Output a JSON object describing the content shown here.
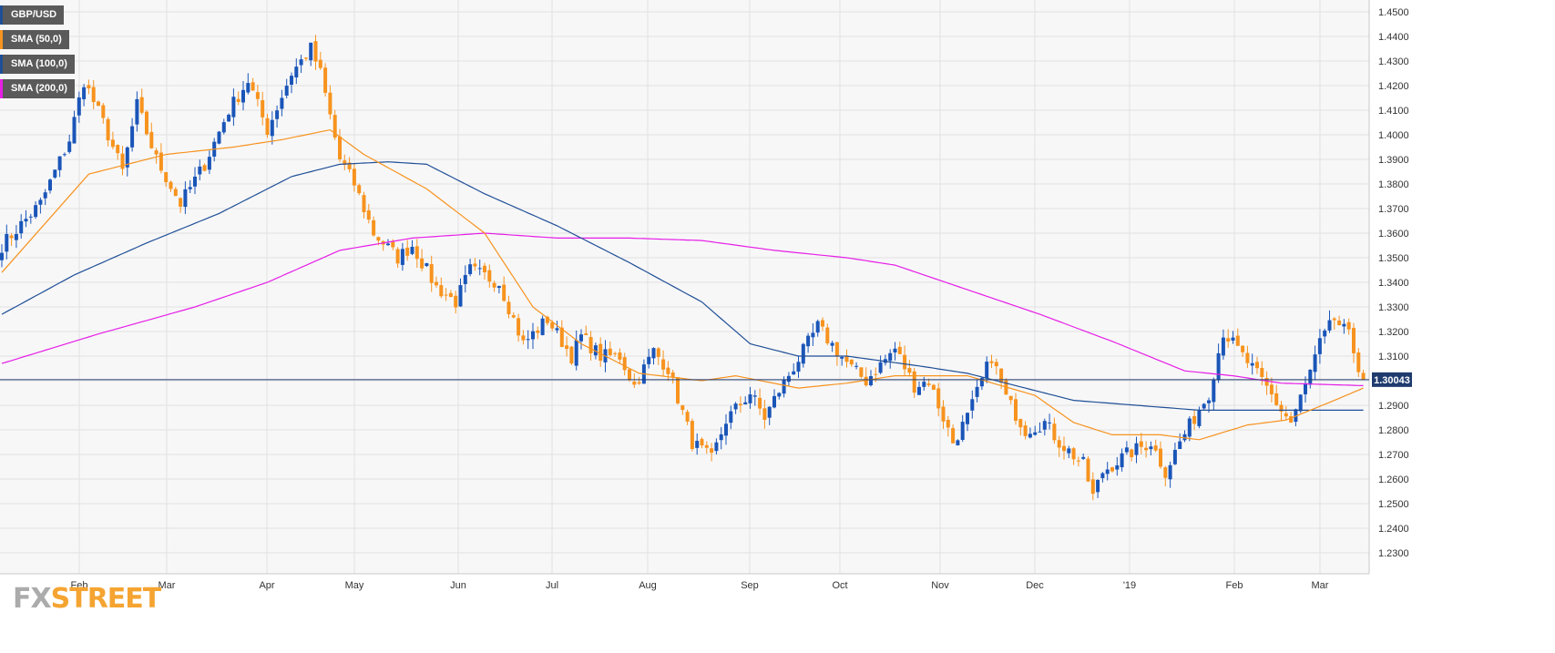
{
  "legend": [
    {
      "label": "GBP/USD",
      "color": "#1f4e96"
    },
    {
      "label": "SMA (50,0)",
      "color": "#f7931e"
    },
    {
      "label": "SMA (100,0)",
      "color": "#1f4e96"
    },
    {
      "label": "SMA (200,0)",
      "color": "#e61ee6"
    }
  ],
  "current_price_label": "1.30043",
  "logo": {
    "part1": "FX",
    "part2": "STREET"
  },
  "colors": {
    "bull": "#1a55b8",
    "bear": "#f7931e",
    "sma50": "#f7931e",
    "sma100": "#1f4e96",
    "sma200": "#e61ee6",
    "grid": "#e2e2e2",
    "plot_bg": "#f7f7f8"
  },
  "chart_data": {
    "type": "candlestick",
    "title": "GBP/USD",
    "y_ticks": [
      "1.2300",
      "1.2400",
      "1.2500",
      "1.2600",
      "1.2700",
      "1.2800",
      "1.2900",
      "1.3000",
      "1.3100",
      "1.3200",
      "1.3300",
      "1.3400",
      "1.3500",
      "1.3600",
      "1.3700",
      "1.3800",
      "1.3900",
      "1.4000",
      "1.4100",
      "1.4200",
      "1.4300",
      "1.4400",
      "1.4500"
    ],
    "ylim": [
      1.22,
      1.455
    ],
    "x_ticks": [
      "Feb",
      "Mar",
      "Apr",
      "May",
      "Jun",
      "Jul",
      "Aug",
      "Sep",
      "Oct",
      "Nov",
      "Dec",
      "'19",
      "Feb",
      "Mar"
    ],
    "current_price": 1.30043,
    "anchors": [
      [
        0,
        1.355
      ],
      [
        8,
        1.372
      ],
      [
        14,
        1.398
      ],
      [
        17,
        1.422
      ],
      [
        21,
        1.405
      ],
      [
        25,
        1.385
      ],
      [
        28,
        1.412
      ],
      [
        32,
        1.39
      ],
      [
        37,
        1.372
      ],
      [
        42,
        1.388
      ],
      [
        47,
        1.41
      ],
      [
        51,
        1.422
      ],
      [
        55,
        1.402
      ],
      [
        60,
        1.425
      ],
      [
        64,
        1.435
      ],
      [
        66,
        1.425
      ],
      [
        70,
        1.39
      ],
      [
        73,
        1.38
      ],
      [
        77,
        1.36
      ],
      [
        82,
        1.35
      ],
      [
        85,
        1.355
      ],
      [
        90,
        1.338
      ],
      [
        94,
        1.332
      ],
      [
        97,
        1.345
      ],
      [
        103,
        1.34
      ],
      [
        108,
        1.315
      ],
      [
        113,
        1.325
      ],
      [
        118,
        1.31
      ],
      [
        120,
        1.318
      ],
      [
        124,
        1.31
      ],
      [
        128,
        1.31
      ],
      [
        131,
        1.298
      ],
      [
        135,
        1.312
      ],
      [
        138,
        1.305
      ],
      [
        143,
        1.275
      ],
      [
        147,
        1.268
      ],
      [
        150,
        1.284
      ],
      [
        155,
        1.295
      ],
      [
        158,
        1.285
      ],
      [
        161,
        1.296
      ],
      [
        166,
        1.312
      ],
      [
        169,
        1.322
      ],
      [
        173,
        1.312
      ],
      [
        176,
        1.305
      ],
      [
        179,
        1.3
      ],
      [
        185,
        1.313
      ],
      [
        189,
        1.298
      ],
      [
        192,
        1.3
      ],
      [
        197,
        1.275
      ],
      [
        200,
        1.285
      ],
      [
        205,
        1.31
      ],
      [
        208,
        1.293
      ],
      [
        212,
        1.28
      ],
      [
        216,
        1.283
      ],
      [
        219,
        1.275
      ],
      [
        224,
        1.266
      ],
      [
        226,
        1.253
      ],
      [
        228,
        1.263
      ],
      [
        233,
        1.27
      ],
      [
        238,
        1.275
      ],
      [
        241,
        1.263
      ],
      [
        244,
        1.275
      ],
      [
        247,
        1.285
      ],
      [
        250,
        1.295
      ],
      [
        253,
        1.32
      ],
      [
        255,
        1.315
      ],
      [
        259,
        1.305
      ],
      [
        262,
        1.297
      ],
      [
        265,
        1.288
      ],
      [
        267,
        1.283
      ],
      [
        270,
        1.298
      ],
      [
        273,
        1.315
      ],
      [
        276,
        1.325
      ],
      [
        279,
        1.318
      ],
      [
        282,
        1.3
      ]
    ],
    "sma50": [
      [
        0,
        1.344
      ],
      [
        18,
        1.384
      ],
      [
        34,
        1.392
      ],
      [
        48,
        1.395
      ],
      [
        58,
        1.398
      ],
      [
        68,
        1.402
      ],
      [
        75,
        1.392
      ],
      [
        88,
        1.378
      ],
      [
        100,
        1.36
      ],
      [
        110,
        1.33
      ],
      [
        120,
        1.315
      ],
      [
        132,
        1.303
      ],
      [
        145,
        1.3
      ],
      [
        152,
        1.302
      ],
      [
        165,
        1.297
      ],
      [
        175,
        1.299
      ],
      [
        185,
        1.302
      ],
      [
        200,
        1.302
      ],
      [
        214,
        1.294
      ],
      [
        222,
        1.283
      ],
      [
        230,
        1.278
      ],
      [
        240,
        1.278
      ],
      [
        248,
        1.276
      ],
      [
        258,
        1.282
      ],
      [
        266,
        1.284
      ],
      [
        276,
        1.292
      ],
      [
        282,
        1.297
      ]
    ],
    "sma100": [
      [
        0,
        1.327
      ],
      [
        15,
        1.343
      ],
      [
        30,
        1.356
      ],
      [
        45,
        1.368
      ],
      [
        60,
        1.383
      ],
      [
        70,
        1.388
      ],
      [
        80,
        1.389
      ],
      [
        88,
        1.388
      ],
      [
        100,
        1.376
      ],
      [
        115,
        1.363
      ],
      [
        130,
        1.348
      ],
      [
        145,
        1.332
      ],
      [
        155,
        1.315
      ],
      [
        165,
        1.31
      ],
      [
        175,
        1.31
      ],
      [
        190,
        1.306
      ],
      [
        200,
        1.303
      ],
      [
        210,
        1.298
      ],
      [
        222,
        1.292
      ],
      [
        235,
        1.29
      ],
      [
        248,
        1.288
      ],
      [
        262,
        1.288
      ],
      [
        282,
        1.288
      ]
    ],
    "sma200": [
      [
        0,
        1.307
      ],
      [
        20,
        1.319
      ],
      [
        40,
        1.33
      ],
      [
        55,
        1.34
      ],
      [
        70,
        1.353
      ],
      [
        85,
        1.358
      ],
      [
        100,
        1.36
      ],
      [
        115,
        1.358
      ],
      [
        130,
        1.358
      ],
      [
        145,
        1.357
      ],
      [
        160,
        1.353
      ],
      [
        175,
        1.35
      ],
      [
        185,
        1.347
      ],
      [
        200,
        1.337
      ],
      [
        215,
        1.327
      ],
      [
        230,
        1.316
      ],
      [
        245,
        1.304
      ],
      [
        255,
        1.302
      ],
      [
        265,
        1.299
      ],
      [
        282,
        1.298
      ]
    ]
  }
}
